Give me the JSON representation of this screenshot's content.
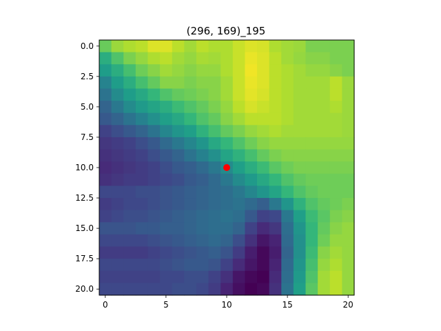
{
  "chart_data": {
    "type": "heatmap",
    "title": "(296, 169)_195",
    "xlabel": "",
    "ylabel": "",
    "colormap": "viridis",
    "xlim": [
      -0.5,
      20.5
    ],
    "ylim": [
      20.5,
      -0.5
    ],
    "xticks": [
      0,
      5,
      10,
      15,
      20
    ],
    "xtick_labels": [
      "0",
      "5",
      "10",
      "15",
      "20"
    ],
    "yticks": [
      0,
      2.5,
      5,
      7.5,
      10,
      12.5,
      15,
      17.5,
      20
    ],
    "ytick_labels": [
      "0.0",
      "2.5",
      "5.0",
      "7.5",
      "10.0",
      "12.5",
      "15.0",
      "17.5",
      "20.0"
    ],
    "grid": false,
    "value_range": [
      0,
      1
    ],
    "values": [
      [
        0.77,
        0.85,
        0.88,
        0.9,
        0.95,
        0.95,
        0.9,
        0.86,
        0.9,
        0.88,
        0.88,
        0.92,
        0.95,
        0.94,
        0.88,
        0.86,
        0.85,
        0.8,
        0.8,
        0.8,
        0.8
      ],
      [
        0.62,
        0.72,
        0.8,
        0.84,
        0.88,
        0.9,
        0.86,
        0.84,
        0.87,
        0.86,
        0.88,
        0.92,
        0.97,
        0.95,
        0.9,
        0.86,
        0.84,
        0.82,
        0.82,
        0.8,
        0.8
      ],
      [
        0.55,
        0.62,
        0.7,
        0.78,
        0.82,
        0.86,
        0.84,
        0.82,
        0.84,
        0.84,
        0.88,
        0.92,
        0.98,
        0.95,
        0.9,
        0.88,
        0.86,
        0.84,
        0.84,
        0.82,
        0.8
      ],
      [
        0.45,
        0.55,
        0.62,
        0.7,
        0.76,
        0.82,
        0.82,
        0.8,
        0.82,
        0.82,
        0.86,
        0.92,
        0.97,
        0.95,
        0.9,
        0.88,
        0.86,
        0.86,
        0.86,
        0.9,
        0.85
      ],
      [
        0.38,
        0.48,
        0.55,
        0.6,
        0.66,
        0.72,
        0.76,
        0.78,
        0.8,
        0.82,
        0.86,
        0.92,
        0.96,
        0.94,
        0.9,
        0.88,
        0.86,
        0.86,
        0.86,
        0.9,
        0.85
      ],
      [
        0.32,
        0.4,
        0.48,
        0.54,
        0.58,
        0.62,
        0.68,
        0.72,
        0.76,
        0.8,
        0.84,
        0.9,
        0.94,
        0.92,
        0.9,
        0.88,
        0.86,
        0.86,
        0.86,
        0.88,
        0.85
      ],
      [
        0.28,
        0.32,
        0.38,
        0.44,
        0.5,
        0.56,
        0.6,
        0.66,
        0.72,
        0.76,
        0.82,
        0.86,
        0.9,
        0.9,
        0.9,
        0.88,
        0.86,
        0.86,
        0.86,
        0.86,
        0.85
      ],
      [
        0.2,
        0.24,
        0.28,
        0.32,
        0.38,
        0.46,
        0.52,
        0.56,
        0.64,
        0.7,
        0.76,
        0.8,
        0.84,
        0.86,
        0.88,
        0.86,
        0.86,
        0.86,
        0.86,
        0.86,
        0.85
      ],
      [
        0.16,
        0.18,
        0.2,
        0.24,
        0.28,
        0.34,
        0.4,
        0.46,
        0.52,
        0.6,
        0.66,
        0.72,
        0.78,
        0.82,
        0.84,
        0.84,
        0.84,
        0.84,
        0.84,
        0.84,
        0.84
      ],
      [
        0.14,
        0.16,
        0.18,
        0.2,
        0.24,
        0.28,
        0.32,
        0.38,
        0.44,
        0.5,
        0.58,
        0.64,
        0.7,
        0.76,
        0.8,
        0.82,
        0.82,
        0.82,
        0.82,
        0.82,
        0.82
      ],
      [
        0.12,
        0.14,
        0.16,
        0.18,
        0.2,
        0.24,
        0.28,
        0.3,
        0.34,
        0.4,
        0.48,
        0.56,
        0.62,
        0.68,
        0.74,
        0.78,
        0.8,
        0.8,
        0.8,
        0.8,
        0.8
      ],
      [
        0.14,
        0.16,
        0.18,
        0.18,
        0.2,
        0.22,
        0.24,
        0.28,
        0.3,
        0.34,
        0.4,
        0.48,
        0.54,
        0.6,
        0.66,
        0.72,
        0.76,
        0.78,
        0.78,
        0.78,
        0.78
      ],
      [
        0.22,
        0.22,
        0.22,
        0.24,
        0.24,
        0.26,
        0.28,
        0.3,
        0.32,
        0.34,
        0.36,
        0.4,
        0.46,
        0.52,
        0.58,
        0.66,
        0.72,
        0.76,
        0.78,
        0.78,
        0.78
      ],
      [
        0.18,
        0.2,
        0.22,
        0.22,
        0.24,
        0.26,
        0.28,
        0.3,
        0.32,
        0.34,
        0.36,
        0.38,
        0.34,
        0.3,
        0.4,
        0.52,
        0.64,
        0.72,
        0.76,
        0.78,
        0.8
      ],
      [
        0.2,
        0.22,
        0.24,
        0.24,
        0.26,
        0.28,
        0.3,
        0.32,
        0.34,
        0.36,
        0.38,
        0.36,
        0.28,
        0.2,
        0.22,
        0.4,
        0.56,
        0.68,
        0.74,
        0.8,
        0.82
      ],
      [
        0.26,
        0.26,
        0.26,
        0.28,
        0.28,
        0.3,
        0.3,
        0.32,
        0.34,
        0.36,
        0.36,
        0.32,
        0.2,
        0.12,
        0.16,
        0.36,
        0.52,
        0.66,
        0.76,
        0.82,
        0.84
      ],
      [
        0.22,
        0.22,
        0.22,
        0.22,
        0.24,
        0.26,
        0.28,
        0.3,
        0.32,
        0.34,
        0.32,
        0.24,
        0.14,
        0.06,
        0.1,
        0.34,
        0.5,
        0.66,
        0.78,
        0.84,
        0.84
      ],
      [
        0.18,
        0.18,
        0.18,
        0.18,
        0.2,
        0.22,
        0.24,
        0.26,
        0.28,
        0.3,
        0.26,
        0.18,
        0.08,
        0.02,
        0.08,
        0.32,
        0.5,
        0.68,
        0.82,
        0.86,
        0.84
      ],
      [
        0.22,
        0.22,
        0.22,
        0.22,
        0.22,
        0.24,
        0.26,
        0.28,
        0.28,
        0.26,
        0.2,
        0.12,
        0.06,
        0.02,
        0.1,
        0.34,
        0.52,
        0.7,
        0.84,
        0.88,
        0.84
      ],
      [
        0.2,
        0.2,
        0.2,
        0.2,
        0.2,
        0.22,
        0.22,
        0.24,
        0.24,
        0.2,
        0.14,
        0.06,
        0.02,
        0.0,
        0.12,
        0.36,
        0.54,
        0.72,
        0.86,
        0.9,
        0.84
      ],
      [
        0.22,
        0.22,
        0.22,
        0.22,
        0.22,
        0.22,
        0.24,
        0.24,
        0.22,
        0.18,
        0.1,
        0.04,
        0.0,
        0.02,
        0.14,
        0.38,
        0.56,
        0.74,
        0.86,
        0.9,
        0.84
      ]
    ],
    "marker": {
      "x": 10,
      "y": 10,
      "color": "#ff0000"
    }
  }
}
